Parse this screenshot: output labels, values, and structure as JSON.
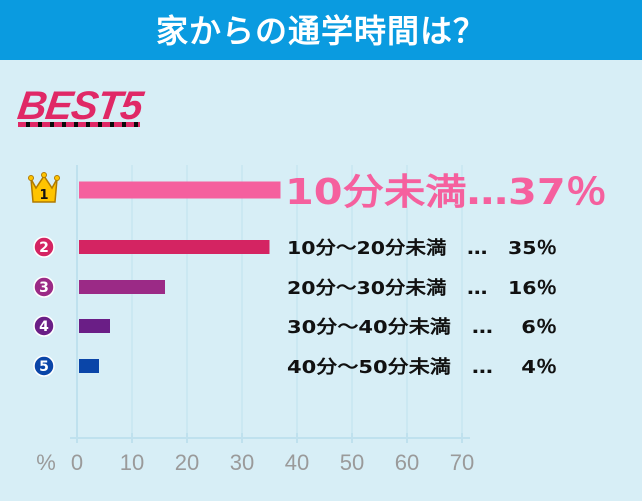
{
  "header": {
    "title": "家からの通学時間は？"
  },
  "badge": {
    "text": "BEST5"
  },
  "colors": {
    "header_bg": "#0a9be0",
    "panel_bg": "#d7eef6",
    "bar1": "#f5609e",
    "bar2": "#d42462",
    "bar3": "#9b2a86",
    "bar4": "#6a1e86",
    "bar5": "#0a45a8",
    "highlight_text": "#f5609e",
    "crown": "#ffc400"
  },
  "chart_data": {
    "type": "bar",
    "orientation": "horizontal",
    "categories": [
      "10分未満",
      "10分～20分未満",
      "20分～30分未満",
      "30分～40分未満",
      "40分～50分未満"
    ],
    "values": [
      37,
      35,
      16,
      6,
      4
    ],
    "ranks": [
      "1",
      "2",
      "3",
      "4",
      "5"
    ],
    "labels": [
      "10分未満…37％",
      "10分～20分未満　…　35％",
      "20分～30分未満　…　16％",
      "30分～40分未満　…　 6％",
      "40分～50分未満　…　 4％"
    ],
    "xlabel": "%",
    "xlim": [
      0,
      70
    ],
    "ticks": [
      0,
      10,
      20,
      30,
      40,
      50,
      60,
      70
    ],
    "grid": true
  }
}
